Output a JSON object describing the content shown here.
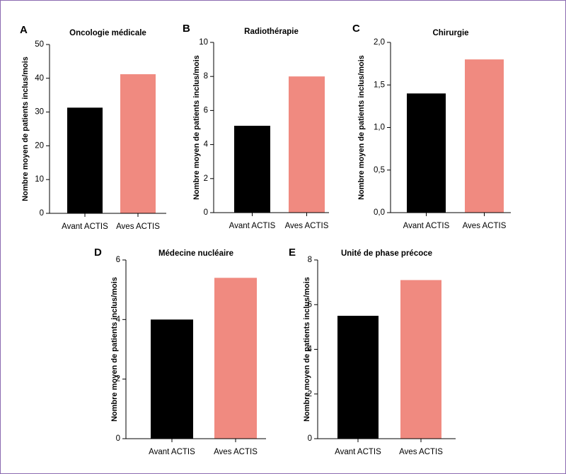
{
  "colors": {
    "before": "#000000",
    "after": "#f08a80",
    "frame": "#8b6bb1"
  },
  "chart_data": [
    {
      "type": "bar",
      "panel": "A",
      "title": "Oncologie médicale",
      "ylabel": "Nombre moyen de patients inclus/mois",
      "xlabel": "",
      "categories": [
        "Avant ACTIS",
        "Aves ACTIS"
      ],
      "values": [
        31.3,
        41.2
      ],
      "ylim": [
        0,
        50
      ],
      "yticks": [
        0,
        10,
        20,
        30,
        40,
        50
      ],
      "ytick_labels": [
        "0",
        "10",
        "20",
        "30",
        "40",
        "50"
      ]
    },
    {
      "type": "bar",
      "panel": "B",
      "title": "Radiothérapie",
      "ylabel": "Nombre moyen de patients inclus/mois",
      "xlabel": "",
      "categories": [
        "Avant ACTIS",
        "Aves ACTIS"
      ],
      "values": [
        5.1,
        8.0
      ],
      "ylim": [
        0,
        10
      ],
      "yticks": [
        0,
        2,
        4,
        6,
        8,
        10
      ],
      "ytick_labels": [
        "0",
        "2",
        "4",
        "6",
        "8",
        "10"
      ]
    },
    {
      "type": "bar",
      "panel": "C",
      "title": "Chirurgie",
      "ylabel": "Nombre moyen de patients inclus/mois",
      "xlabel": "",
      "categories": [
        "Avant ACTIS",
        "Aves ACTIS"
      ],
      "values": [
        1.4,
        1.8
      ],
      "ylim": [
        0,
        2
      ],
      "yticks": [
        0,
        0.5,
        1,
        1.5,
        2
      ],
      "ytick_labels": [
        "0,0",
        "0,5",
        "1,0",
        "1,5",
        "2,0"
      ]
    },
    {
      "type": "bar",
      "panel": "D",
      "title": "Médecine nucléaire",
      "ylabel": "Nombre moyen de patients inclus/mois",
      "xlabel": "",
      "categories": [
        "Avant ACTIS",
        "Aves ACTIS"
      ],
      "values": [
        4.0,
        5.4
      ],
      "ylim": [
        0,
        6
      ],
      "yticks": [
        0,
        2,
        4,
        6
      ],
      "ytick_labels": [
        "0",
        "2",
        "4",
        "6"
      ]
    },
    {
      "type": "bar",
      "panel": "E",
      "title": "Unité de phase précoce",
      "ylabel": "Nombre moyen de patients inclus/mois",
      "xlabel": "",
      "categories": [
        "Avant ACTIS",
        "Aves ACTIS"
      ],
      "values": [
        5.5,
        7.1
      ],
      "ylim": [
        0,
        8
      ],
      "yticks": [
        0,
        2,
        4,
        6,
        8
      ],
      "ytick_labels": [
        "0",
        "2",
        "4",
        "6",
        "8"
      ]
    }
  ]
}
